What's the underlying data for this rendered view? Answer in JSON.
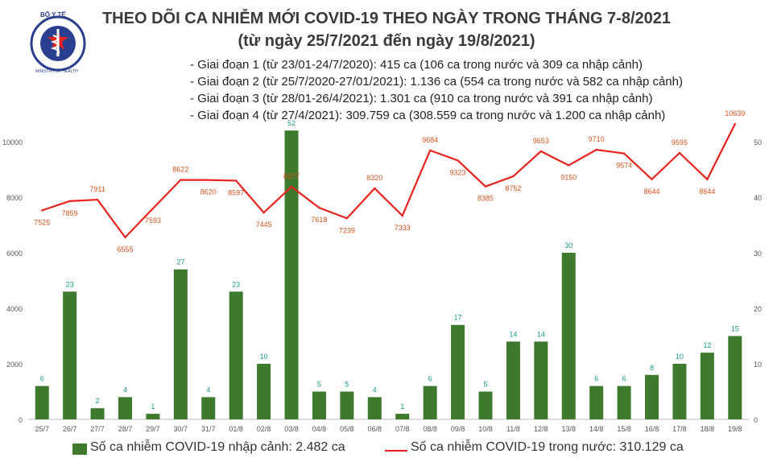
{
  "header": {
    "title": "THEO DÕI CA NHIỄM MỚI COVID-19 THEO NGÀY TRONG THÁNG 7-8/2021",
    "subtitle": "(từ ngày 25/7/2021 đến ngày 19/8/2021)",
    "logo_text": "BỘ Y TẾ",
    "logo_subtext": "MINISTRY OF HEALTH"
  },
  "phases": [
    "- Giai đoạn 1 (từ 23/01-24/7/2020): 415 ca (106 ca trong nước và 309 ca nhập cảnh)",
    "- Giai đoạn 2 (từ 25/7/2020-27/01/2021): 1.136 ca (554 ca trong nước và 582 ca nhập cảnh)",
    "- Giai đoạn 3 (từ 28/01-26/4/2021): 1.301 ca (910 ca trong nước và 391 ca nhập cảnh)",
    "- Giai đoạn 4 (từ 27/4/2021): 309.759 ca (308.559 ca trong nước và 1.200 ca nhập cảnh)"
  ],
  "colors": {
    "bar": "#3d7a2e",
    "bar_label": "#1a9a8c",
    "line": "#e8231d",
    "line_label": "#d9531e",
    "axis_text": "#555555"
  },
  "chart_data": {
    "type": "bar+line",
    "categories": [
      "25/7",
      "26/7",
      "27/7",
      "28/7",
      "29/7",
      "30/7",
      "31/7",
      "01/8",
      "02/8",
      "03/8",
      "04/8",
      "05/8",
      "06/8",
      "07/8",
      "08/8",
      "09/8",
      "10/8",
      "11/8",
      "12/8",
      "13/8",
      "14/8",
      "15/8",
      "16/8",
      "17/8",
      "18/8",
      "19/8"
    ],
    "left_axis": {
      "min": 0,
      "max": 10000,
      "ticks": [
        "0",
        "2000",
        "4000",
        "6000",
        "8000",
        "10000"
      ]
    },
    "right_axis": {
      "min": 0,
      "max": 50,
      "ticks": [
        "0",
        "10",
        "20",
        "30",
        "40",
        "50"
      ]
    },
    "series": [
      {
        "name": "Số ca nhiễm COVID-19 nhập cảnh: 2.482 ca",
        "type": "bar",
        "axis": "right",
        "values": [
          6,
          23,
          2,
          4,
          1,
          27,
          4,
          23,
          10,
          52,
          5,
          5,
          4,
          1,
          6,
          17,
          5,
          14,
          14,
          30,
          6,
          6,
          8,
          10,
          12,
          15
        ]
      },
      {
        "name": "Số ca nhiễm COVID-19 trong nước: 310.129 ca",
        "type": "line",
        "axis": "left",
        "values": [
          7525,
          7859,
          7911,
          6555,
          7593,
          8622,
          8620,
          8597,
          7445,
          8377,
          7618,
          7239,
          8320,
          7333,
          9684,
          9323,
          8385,
          8752,
          9653,
          9150,
          9710,
          9574,
          8644,
          9595,
          8644,
          10639
        ]
      }
    ],
    "legend_position": "bottom"
  }
}
